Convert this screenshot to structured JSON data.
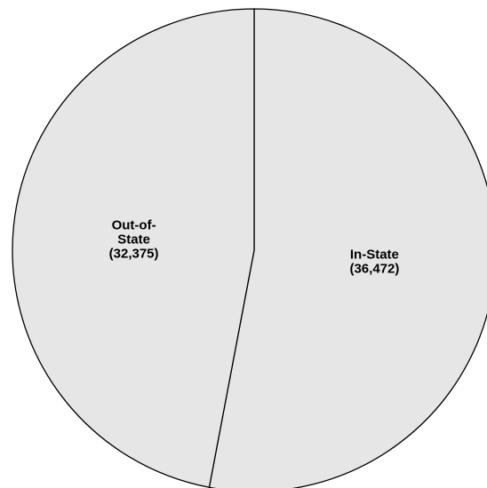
{
  "chart_data": {
    "type": "pie",
    "slices": [
      {
        "label_lines": [
          "In-State",
          "(36,472)"
        ],
        "category": "In-State",
        "value": 36472,
        "color": "#e6e6e6"
      },
      {
        "label_lines": [
          "Out-of-",
          "State",
          "(32,375)"
        ],
        "category": "Out-of-State",
        "value": 32375,
        "color": "#e6e6e6"
      }
    ],
    "start_angle": "12 o'clock",
    "direction": "clockwise",
    "outline_color": "#000000",
    "legend": "none"
  }
}
